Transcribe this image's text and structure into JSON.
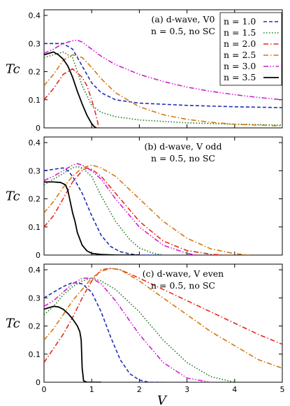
{
  "chart_data": [
    {
      "type": "line",
      "annotation": [
        "(a) d-wave, V0",
        "n = 0.5, no SC"
      ],
      "ylabel": "Tc",
      "xlabel": "",
      "xlim": [
        0,
        5
      ],
      "ylim": [
        0,
        0.42
      ],
      "xticks": [
        "0",
        "1",
        "2",
        "3",
        "4",
        "5"
      ],
      "yticks": [
        "0",
        "0.1",
        "0.2",
        "0.3",
        "0.4"
      ],
      "x_tick_labels_shown": false,
      "legend": {
        "placement": "top-right"
      },
      "series": [
        {
          "name": "n = 1.0",
          "color": "#1f2eb0",
          "dash": "dashed",
          "x": [
            0,
            0.2,
            0.4,
            0.6,
            0.8,
            1.0,
            1.2,
            1.5,
            2.0,
            3.0,
            4.0,
            5.0
          ],
          "y": [
            0.3,
            0.3,
            0.3,
            0.28,
            0.22,
            0.16,
            0.125,
            0.1,
            0.088,
            0.08,
            0.075,
            0.072
          ]
        },
        {
          "name": "n = 1.5",
          "color": "#1e7a1e",
          "dash": "dotted",
          "x": [
            0,
            0.2,
            0.4,
            0.6,
            0.8,
            1.0,
            1.2,
            1.5,
            2.0,
            3.0,
            4.0,
            5.0
          ],
          "y": [
            0.25,
            0.26,
            0.27,
            0.25,
            0.15,
            0.08,
            0.055,
            0.04,
            0.028,
            0.018,
            0.013,
            0.01
          ]
        },
        {
          "name": "n = 2.0",
          "color": "#e8291c",
          "dash": "dashdot",
          "x": [
            0,
            0.2,
            0.4,
            0.6,
            0.8,
            0.9,
            1.0,
            1.1,
            1.15
          ],
          "y": [
            0.1,
            0.14,
            0.19,
            0.21,
            0.18,
            0.15,
            0.1,
            0.04,
            0.0
          ]
        },
        {
          "name": "n = 2.5",
          "color": "#d4780f",
          "dash": "dashdot",
          "x": [
            0,
            0.2,
            0.4,
            0.6,
            0.8,
            1.0,
            1.2,
            1.5,
            2.0,
            2.5,
            3.0,
            3.5,
            4.0,
            5.0
          ],
          "y": [
            0.15,
            0.19,
            0.24,
            0.26,
            0.25,
            0.215,
            0.175,
            0.125,
            0.075,
            0.047,
            0.03,
            0.02,
            0.013,
            0.007
          ]
        },
        {
          "name": "n = 3.0",
          "color": "#d11ed1",
          "dash": "dashdotdot",
          "x": [
            0,
            0.2,
            0.4,
            0.6,
            0.7,
            0.8,
            1.0,
            1.2,
            1.5,
            2.0,
            2.5,
            3.0,
            3.5,
            4.0,
            4.5,
            5.0
          ],
          "y": [
            0.265,
            0.28,
            0.3,
            0.31,
            0.312,
            0.305,
            0.28,
            0.255,
            0.225,
            0.19,
            0.165,
            0.145,
            0.13,
            0.118,
            0.108,
            0.1
          ]
        },
        {
          "name": "n = 3.5",
          "color": "#000000",
          "dash": "solid",
          "x": [
            0,
            0.1,
            0.2,
            0.3,
            0.4,
            0.5,
            0.6,
            0.7,
            0.8,
            0.9,
            1.0,
            1.05,
            1.1
          ],
          "y": [
            0.26,
            0.265,
            0.27,
            0.26,
            0.245,
            0.22,
            0.18,
            0.13,
            0.085,
            0.045,
            0.015,
            0.005,
            0.0
          ]
        }
      ]
    },
    {
      "type": "line",
      "annotation": [
        "(b) d-wave, V odd",
        "n = 0.5, no SC"
      ],
      "ylabel": "Tc",
      "xlabel": "",
      "xlim": [
        0,
        5
      ],
      "ylim": [
        0,
        0.42
      ],
      "xticks": [
        "0",
        "1",
        "2",
        "3",
        "4",
        "5"
      ],
      "yticks": [
        "0",
        "0.1",
        "0.2",
        "0.3",
        "0.4"
      ],
      "x_tick_labels_shown": false,
      "series": [
        {
          "name": "n = 1.0",
          "color": "#1f2eb0",
          "dash": "dashed",
          "x": [
            0,
            0.2,
            0.4,
            0.5,
            0.6,
            0.8,
            1.0,
            1.2,
            1.4,
            1.6,
            1.8,
            2.0,
            2.5
          ],
          "y": [
            0.3,
            0.305,
            0.31,
            0.3,
            0.28,
            0.22,
            0.14,
            0.07,
            0.03,
            0.012,
            0.004,
            0.0,
            0.0
          ]
        },
        {
          "name": "n = 1.5",
          "color": "#1e7a1e",
          "dash": "dotted",
          "x": [
            0,
            0.2,
            0.4,
            0.6,
            0.7,
            0.8,
            1.0,
            1.2,
            1.5,
            1.8,
            2.0,
            2.3,
            2.5
          ],
          "y": [
            0.25,
            0.27,
            0.29,
            0.31,
            0.315,
            0.31,
            0.28,
            0.21,
            0.12,
            0.055,
            0.025,
            0.006,
            0.0
          ]
        },
        {
          "name": "n = 2.0",
          "color": "#e8291c",
          "dash": "dashdot",
          "x": [
            0,
            0.2,
            0.4,
            0.6,
            0.8,
            0.9,
            1.0,
            1.2,
            1.5,
            2.0,
            2.5,
            3.0,
            3.5,
            3.8
          ],
          "y": [
            0.1,
            0.14,
            0.2,
            0.26,
            0.3,
            0.31,
            0.305,
            0.28,
            0.22,
            0.12,
            0.05,
            0.016,
            0.003,
            0.0
          ]
        },
        {
          "name": "n = 2.5",
          "color": "#d4780f",
          "dash": "dashdot",
          "x": [
            0,
            0.2,
            0.4,
            0.6,
            0.8,
            1.0,
            1.2,
            1.5,
            2.0,
            2.5,
            3.0,
            3.5,
            4.0,
            4.3
          ],
          "y": [
            0.15,
            0.19,
            0.24,
            0.28,
            0.31,
            0.32,
            0.31,
            0.28,
            0.2,
            0.12,
            0.06,
            0.022,
            0.005,
            0.0
          ]
        },
        {
          "name": "n = 3.0",
          "color": "#d11ed1",
          "dash": "dashdotdot",
          "x": [
            0,
            0.2,
            0.4,
            0.6,
            0.7,
            0.8,
            1.0,
            1.2,
            1.5,
            2.0,
            2.5,
            3.0,
            3.2
          ],
          "y": [
            0.265,
            0.28,
            0.3,
            0.32,
            0.325,
            0.32,
            0.3,
            0.27,
            0.2,
            0.1,
            0.035,
            0.006,
            0.0
          ]
        },
        {
          "name": "n = 3.5",
          "color": "#000000",
          "dash": "solid",
          "x": [
            0,
            0.2,
            0.35,
            0.45,
            0.5,
            0.55,
            0.6,
            0.65,
            0.7,
            0.8,
            0.9,
            1.0,
            1.2,
            1.5,
            2.0
          ],
          "y": [
            0.26,
            0.26,
            0.258,
            0.25,
            0.23,
            0.19,
            0.15,
            0.12,
            0.08,
            0.035,
            0.015,
            0.006,
            0.002,
            0.0,
            0.0
          ]
        }
      ]
    },
    {
      "type": "line",
      "annotation": [
        "(c) d-wave, V even",
        "n = 0.5, no SC"
      ],
      "ylabel": "Tc",
      "xlabel": "V",
      "xlim": [
        0,
        5
      ],
      "ylim": [
        0,
        0.42
      ],
      "xticks": [
        "0",
        "1",
        "2",
        "3",
        "4",
        "5"
      ],
      "yticks": [
        "0",
        "0.1",
        "0.2",
        "0.3",
        "0.4"
      ],
      "x_tick_labels_shown": true,
      "series": [
        {
          "name": "n = 1.0",
          "color": "#1f2eb0",
          "dash": "dashed",
          "x": [
            0,
            0.2,
            0.4,
            0.6,
            0.8,
            1.0,
            1.2,
            1.4,
            1.6,
            1.8,
            2.0,
            2.2,
            2.5
          ],
          "y": [
            0.3,
            0.32,
            0.34,
            0.355,
            0.35,
            0.32,
            0.25,
            0.16,
            0.08,
            0.03,
            0.008,
            0.0,
            0.0
          ]
        },
        {
          "name": "n = 1.5",
          "color": "#1e7a1e",
          "dash": "dotted",
          "x": [
            0,
            0.2,
            0.4,
            0.6,
            0.8,
            1.0,
            1.2,
            1.5,
            2.0,
            2.5,
            3.0,
            3.5,
            4.0
          ],
          "y": [
            0.24,
            0.27,
            0.31,
            0.34,
            0.36,
            0.37,
            0.36,
            0.33,
            0.25,
            0.15,
            0.07,
            0.02,
            0.0
          ]
        },
        {
          "name": "n = 2.0",
          "color": "#e8291c",
          "dash": "dashdot",
          "x": [
            0,
            0.2,
            0.4,
            0.6,
            0.8,
            1.0,
            1.2,
            1.4,
            1.6,
            2.0,
            2.5,
            3.0,
            3.5,
            4.0,
            4.5,
            5.0
          ],
          "y": [
            0.07,
            0.12,
            0.17,
            0.23,
            0.3,
            0.36,
            0.4,
            0.405,
            0.4,
            0.37,
            0.33,
            0.29,
            0.25,
            0.21,
            0.17,
            0.135
          ]
        },
        {
          "name": "n = 2.5",
          "color": "#d4780f",
          "dash": "dashdot",
          "x": [
            0,
            0.2,
            0.4,
            0.6,
            0.8,
            1.0,
            1.2,
            1.4,
            1.6,
            2.0,
            2.5,
            3.0,
            3.5,
            4.0,
            4.5,
            5.0
          ],
          "y": [
            0.15,
            0.19,
            0.24,
            0.29,
            0.33,
            0.37,
            0.395,
            0.405,
            0.4,
            0.36,
            0.3,
            0.24,
            0.18,
            0.13,
            0.08,
            0.05
          ]
        },
        {
          "name": "n = 3.0",
          "color": "#d11ed1",
          "dash": "dashdotdot",
          "x": [
            0,
            0.2,
            0.4,
            0.6,
            0.8,
            1.0,
            1.2,
            1.5,
            2.0,
            2.5,
            3.0,
            3.5
          ],
          "y": [
            0.27,
            0.29,
            0.32,
            0.35,
            0.37,
            0.37,
            0.35,
            0.29,
            0.17,
            0.07,
            0.015,
            0.0
          ]
        },
        {
          "name": "n = 3.5",
          "color": "#000000",
          "dash": "solid",
          "x": [
            0,
            0.1,
            0.2,
            0.3,
            0.4,
            0.5,
            0.6,
            0.7,
            0.75,
            0.78,
            0.8,
            0.83,
            0.9,
            1.2
          ],
          "y": [
            0.26,
            0.265,
            0.27,
            0.268,
            0.26,
            0.245,
            0.225,
            0.2,
            0.18,
            0.15,
            0.05,
            0.005,
            0.0,
            0.0
          ]
        }
      ]
    }
  ]
}
